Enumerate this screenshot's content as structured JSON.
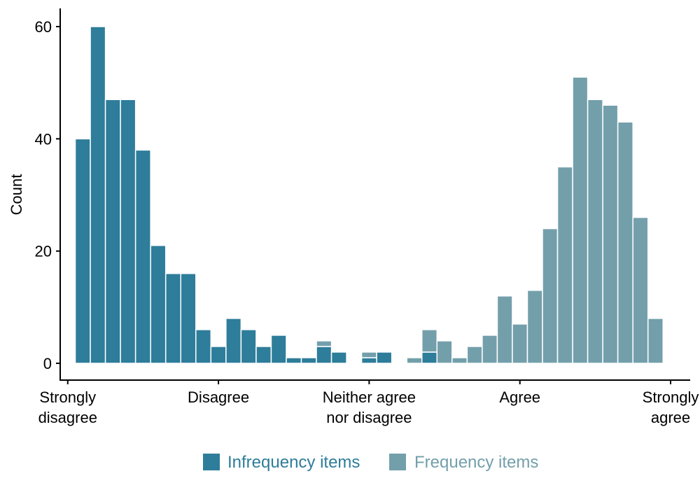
{
  "chart_data": {
    "type": "bar",
    "stacked": true,
    "title": "",
    "xlabel": "",
    "ylabel": "Count",
    "ylim": [
      0,
      63
    ],
    "yticks": [
      0,
      20,
      40,
      60
    ],
    "xlim": [
      0.95,
      5.13
    ],
    "xticks": [
      {
        "value": 1,
        "label": [
          "Strongly",
          "disagree"
        ]
      },
      {
        "value": 2,
        "label": [
          "Disagree"
        ]
      },
      {
        "value": 3,
        "label": [
          "Neither agree",
          "nor disagree"
        ]
      },
      {
        "value": 4,
        "label": [
          "Agree"
        ]
      },
      {
        "value": 5,
        "label": [
          "Strongly",
          "agree"
        ]
      }
    ],
    "bin_width": 0.1,
    "bin_starts": [
      1.05,
      1.15,
      1.25,
      1.35,
      1.45,
      1.55,
      1.65,
      1.75,
      1.85,
      1.95,
      2.05,
      2.15,
      2.25,
      2.35,
      2.45,
      2.55,
      2.65,
      2.75,
      2.85,
      2.95,
      3.05,
      3.15,
      3.25,
      3.35,
      3.45,
      3.55,
      3.65,
      3.75,
      3.85,
      3.95,
      4.05,
      4.15,
      4.25,
      4.35,
      4.45,
      4.55,
      4.65,
      4.75,
      4.85,
      4.95
    ],
    "series": [
      {
        "name": "Infrequency items",
        "color": "#2e7d9a",
        "values": [
          40,
          60,
          47,
          47,
          38,
          21,
          16,
          16,
          6,
          3,
          8,
          6,
          3,
          5,
          1,
          1,
          3,
          2,
          0,
          1,
          2,
          0,
          0,
          2,
          0,
          0,
          0,
          0,
          0,
          0,
          0,
          0,
          0,
          0,
          0,
          0,
          0,
          0,
          0,
          0
        ]
      },
      {
        "name": "Frequency items",
        "color": "#739fab",
        "values": [
          0,
          0,
          0,
          0,
          0,
          0,
          0,
          0,
          0,
          0,
          0,
          0,
          0,
          0,
          0,
          0,
          1,
          0,
          0,
          1,
          0,
          0,
          1,
          4,
          4,
          1,
          3,
          5,
          12,
          7,
          13,
          24,
          35,
          51,
          47,
          46,
          43,
          26,
          8,
          0
        ]
      }
    ],
    "legend_position": "bottom",
    "grid": false
  }
}
